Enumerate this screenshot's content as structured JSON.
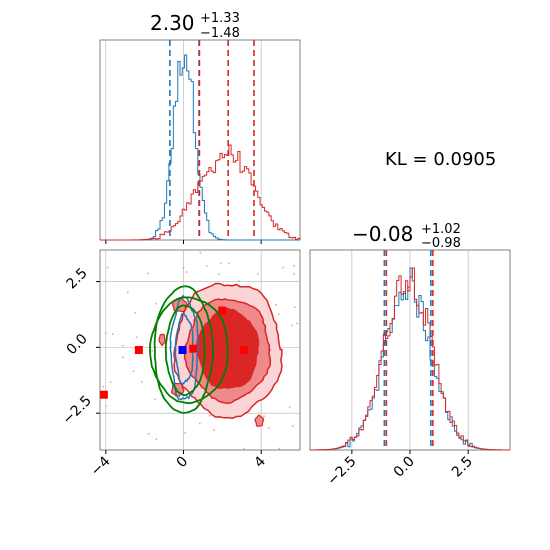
{
  "chart_data": [
    {
      "type": "histogram",
      "panel": "top-left marginal (parameter 1)",
      "title": {
        "value": "2.30",
        "plus": "+1.33",
        "minus": "−1.48"
      },
      "xlim": [
        -4.3,
        6.0
      ],
      "grid": true,
      "series": [
        {
          "name": "",
          "color": "#1f77b4",
          "center": 0.05,
          "sigma": 0.55,
          "quantile_lines": [
            -0.7,
            0.8
          ]
        },
        {
          "name": "",
          "color": "#d62728",
          "components": [
            {
              "center": 2.3,
              "sigma": 1.3,
              "weight": 0.88
            },
            {
              "center": 0.3,
              "sigma": 0.7,
              "weight": 0.12
            }
          ],
          "quantile_lines": [
            0.82,
            2.3,
            3.63
          ]
        }
      ]
    },
    {
      "type": "histogram",
      "panel": "bottom-right marginal (parameter 2)",
      "title": {
        "value": "−0.08",
        "plus": "+1.02",
        "minus": "−0.98"
      },
      "xlim": [
        -4.3,
        4.3
      ],
      "xticks": [
        -2.5,
        0.0,
        2.5
      ],
      "xtick_labels": [
        "−2.5",
        "0.0",
        "2.5"
      ],
      "grid": true,
      "series": [
        {
          "name": "",
          "color": "#1f77b4",
          "center": -0.08,
          "sigma": 1.0,
          "quantile_lines": [
            -1.06,
            0.94
          ]
        },
        {
          "name": "",
          "color": "#d62728",
          "center": -0.08,
          "sigma": 1.0,
          "quantile_lines": [
            -1.06,
            0.94
          ]
        }
      ]
    },
    {
      "type": "contour",
      "panel": "bottom-left joint (parameter 1 vs parameter 2)",
      "xlim": [
        -4.3,
        6.0
      ],
      "ylim": [
        -3.9,
        3.7
      ],
      "xticks": [
        -4,
        0,
        4
      ],
      "xtick_labels": [
        "−4",
        "0",
        "4"
      ],
      "yticks": [
        -2.5,
        0.0,
        2.5
      ],
      "ytick_labels": [
        "−2.5",
        "0.0",
        "2.5"
      ],
      "grid": true,
      "red_levels": [
        {
          "fill": "#fbd5d5",
          "rx": 2.75,
          "ry": 2.55
        },
        {
          "fill": "#f08a8a",
          "rx": 2.15,
          "ry": 1.95
        },
        {
          "fill": "#dc2626",
          "rx": 1.55,
          "ry": 1.5
        }
      ],
      "red_center": [
        2.3,
        -0.08
      ],
      "red_markers": [
        [
          -2.3,
          -0.1
        ],
        [
          2.0,
          1.4
        ],
        [
          3.1,
          -0.1
        ],
        [
          0.5,
          -0.05
        ],
        [
          -4.1,
          -1.8
        ]
      ],
      "blue_center": [
        0.05,
        -0.08
      ],
      "blue_levels": [
        {
          "rx": 0.7,
          "ry": 1.95
        },
        {
          "rx": 0.45,
          "ry": 1.3
        }
      ],
      "blue_markers": [
        [
          -0.05,
          -0.1
        ]
      ],
      "green_levels": [
        {
          "cx": 0.0,
          "cy": -0.1,
          "rx": 1.5,
          "ry": 2.4
        },
        {
          "cx": 0.1,
          "cy": -0.1,
          "rx": 1.0,
          "ry": 1.7
        },
        {
          "cx": 0.3,
          "cy": -0.1,
          "rx": 2.0,
          "ry": 2.0
        }
      ]
    }
  ],
  "annotation": "KL = 0.0905",
  "colors": {
    "blue": "#1f77b4",
    "red": "#d62728",
    "green": "#008000",
    "grid": "#b0b0b0"
  }
}
